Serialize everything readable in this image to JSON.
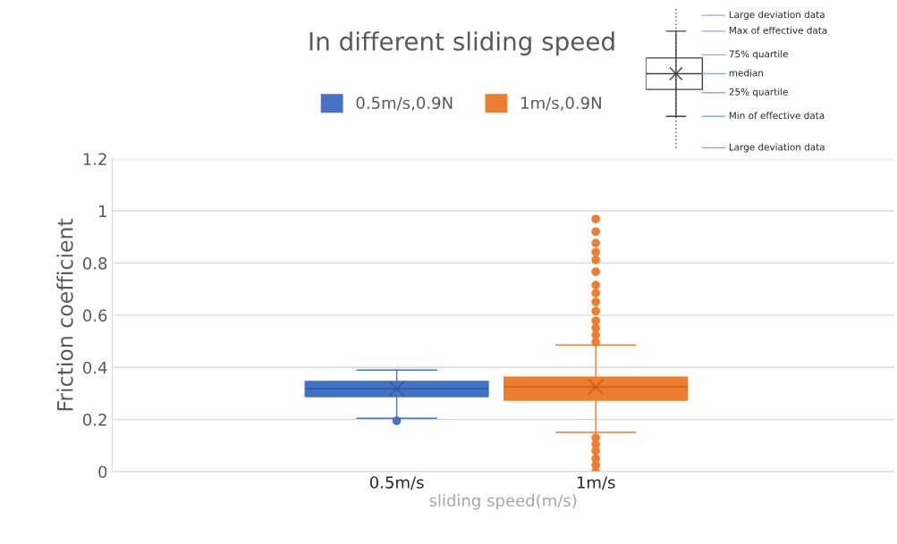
{
  "chart_data": {
    "type": "box",
    "title": "In different sliding speed",
    "xlabel": "sliding speed(m/s)",
    "ylabel": "Friction coefficient",
    "categories": [
      "0.5m/s",
      "1m/s"
    ],
    "series": [
      {
        "name": "0.5m/s,0.9N",
        "color": "#4472c4",
        "boxes": [
          {
            "low": 0.205,
            "q1": 0.288,
            "median": 0.318,
            "q3": 0.346,
            "high": 0.39,
            "mean": 0.318,
            "outliers": [
              0.195
            ]
          },
          null
        ]
      },
      {
        "name": "1m/s,0.9N",
        "color": "#ed7d31",
        "boxes": [
          null,
          {
            "low": 0.151,
            "q1": 0.274,
            "median": 0.325,
            "q3": 0.363,
            "high": 0.486,
            "mean": 0.325,
            "outliers": [
              0.969,
              0.921,
              0.877,
              0.842,
              0.812,
              0.767,
              0.716,
              0.685,
              0.651,
              0.616,
              0.579,
              0.551,
              0.524,
              0.497,
              0.13,
              0.105,
              0.08,
              0.05,
              0.025,
              0.0
            ]
          }
        ]
      }
    ],
    "ylim": [
      0,
      1.2
    ],
    "yticks": [
      0,
      0.2,
      0.4,
      0.6,
      0.8,
      1,
      1.2
    ],
    "grid": "y",
    "legend": "top",
    "annotations": [
      "Large deviation data",
      "Max of effective data",
      "75% quartile",
      "median",
      "25% quartile",
      "Min of effective data",
      "Large deviation data"
    ]
  }
}
